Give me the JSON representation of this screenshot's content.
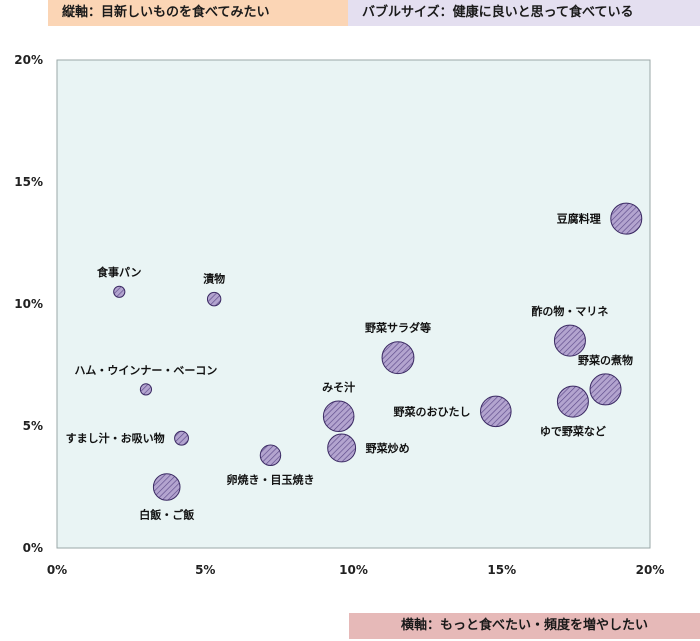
{
  "header": {
    "y_axis_label": "縦軸：目新しいものを食べてみたい",
    "bubble_size_label": "バブルサイズ：健康に良いと思って食べている"
  },
  "footer": {
    "x_axis_label": "横軸：もっと食べたい・頻度を増やしたい"
  },
  "chart_data": {
    "type": "scatter",
    "subtype": "bubble",
    "title": "",
    "xlabel": "横軸：もっと食べたい・頻度を増やしたい",
    "ylabel": "縦軸：目新しいものを食べてみたい",
    "size_label": "バブルサイズ：健康に良いと思って食べている",
    "xlim": [
      0,
      20
    ],
    "ylim": [
      0,
      20
    ],
    "x_ticks": [
      "0%",
      "5%",
      "10%",
      "15%",
      "20%"
    ],
    "y_ticks": [
      "0%",
      "5%",
      "10%",
      "15%",
      "20%"
    ],
    "grid": false,
    "colors": {
      "plot_bg": "#e9f4f4",
      "bubble_fill": "#a08cbf",
      "bubble_stroke": "#3b2a63"
    },
    "points": [
      {
        "name": "食事パン",
        "x": 2.1,
        "y": 10.5,
        "size": 0.5,
        "label_pos": "top"
      },
      {
        "name": "漬物",
        "x": 5.3,
        "y": 10.2,
        "size": 1.0,
        "label_pos": "top"
      },
      {
        "name": "ハム・ウインナー・ベーコン",
        "x": 3.0,
        "y": 6.5,
        "size": 0.5,
        "label_pos": "top"
      },
      {
        "name": "すまし汁・お吸い物",
        "x": 4.2,
        "y": 4.5,
        "size": 1.1,
        "label_pos": "left"
      },
      {
        "name": "白飯・ご飯",
        "x": 3.7,
        "y": 2.5,
        "size": 4.0,
        "label_pos": "bottom"
      },
      {
        "name": "卵焼き・目玉焼き",
        "x": 7.2,
        "y": 3.8,
        "size": 2.6,
        "label_pos": "bottom"
      },
      {
        "name": "みそ汁",
        "x": 9.5,
        "y": 5.4,
        "size": 4.9,
        "label_pos": "top"
      },
      {
        "name": "野菜炒め",
        "x": 9.6,
        "y": 4.1,
        "size": 4.3,
        "label_pos": "right"
      },
      {
        "name": "野菜サラダ等",
        "x": 11.5,
        "y": 7.8,
        "size": 5.2,
        "label_pos": "top"
      },
      {
        "name": "野菜のおひたし",
        "x": 14.8,
        "y": 5.6,
        "size": 4.9,
        "label_pos": "left"
      },
      {
        "name": "酢の物・マリネ",
        "x": 17.3,
        "y": 8.5,
        "size": 5.0,
        "label_pos": "top"
      },
      {
        "name": "野菜の煮物",
        "x": 18.5,
        "y": 6.5,
        "size": 5.0,
        "label_pos": "top"
      },
      {
        "name": "ゆで野菜など",
        "x": 17.4,
        "y": 6.0,
        "size": 5.0,
        "label_pos": "bottom"
      },
      {
        "name": "豆腐料理",
        "x": 19.2,
        "y": 13.5,
        "size": 5.0,
        "label_pos": "left"
      }
    ]
  }
}
